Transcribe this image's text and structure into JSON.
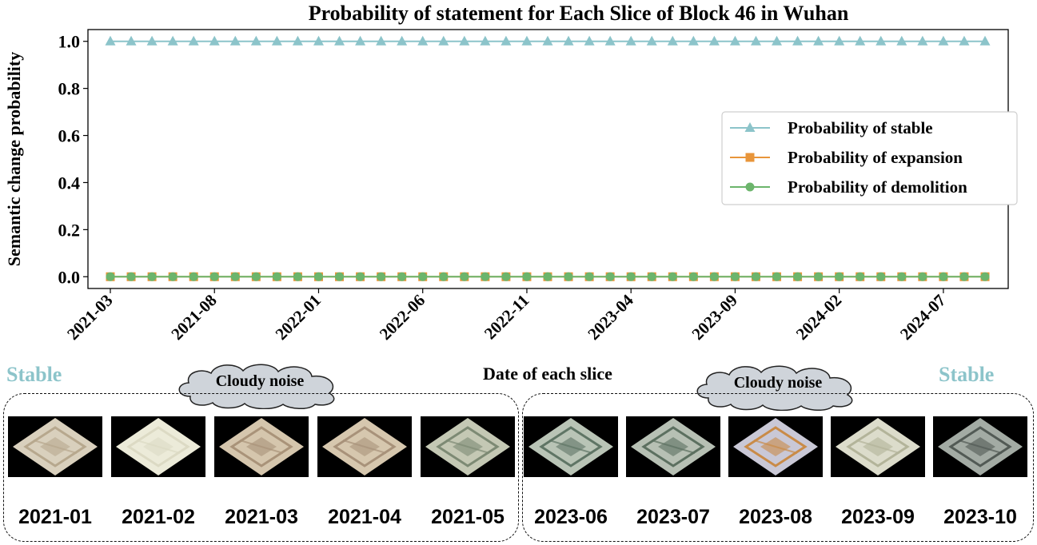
{
  "chart_data": {
    "type": "line",
    "title": "Probability of statement for Each Slice of Block 46 in Wuhan",
    "xlabel": "Date of each slice",
    "ylabel": "Semantic change probability",
    "ylim": [
      -0.05,
      1.05
    ],
    "yticks": [
      "0.0",
      "0.2",
      "0.4",
      "0.6",
      "0.8",
      "1.0"
    ],
    "xtick_labels": [
      "2021-03",
      "2021-08",
      "2022-01",
      "2022-06",
      "2022-11",
      "2023-04",
      "2023-09",
      "2024-02",
      "2024-07"
    ],
    "x": [
      "2021-03",
      "2021-04",
      "2021-05",
      "2021-06",
      "2021-07",
      "2021-08",
      "2021-09",
      "2021-10",
      "2021-11",
      "2021-12",
      "2022-01",
      "2022-02",
      "2022-03",
      "2022-04",
      "2022-05",
      "2022-06",
      "2022-07",
      "2022-08",
      "2022-09",
      "2022-10",
      "2022-11",
      "2022-12",
      "2023-01",
      "2023-02",
      "2023-03",
      "2023-04",
      "2023-05",
      "2023-06",
      "2023-07",
      "2023-08",
      "2023-09",
      "2023-10",
      "2023-11",
      "2023-12",
      "2024-01",
      "2024-02",
      "2024-03",
      "2024-04",
      "2024-05",
      "2024-06",
      "2024-07",
      "2024-08",
      "2024-09"
    ],
    "series": [
      {
        "name": "Probability of stable",
        "color": "#8cc4ca",
        "marker": "triangle",
        "value_all": 1.0
      },
      {
        "name": "Probability of expansion",
        "color": "#e8953a",
        "marker": "square",
        "value_all": 0.0
      },
      {
        "name": "Probability of demolition",
        "color": "#6cb56c",
        "marker": "circle",
        "value_all": 0.0
      }
    ],
    "legend_position": "right",
    "grid": false
  },
  "annotations": {
    "left_label": "Stable",
    "right_label": "Stable",
    "left_cloud": "Cloudy noise",
    "right_cloud": "Cloudy noise",
    "label_color": "#8cc4ca"
  },
  "thumbnails_left": [
    {
      "date": "2021-01",
      "tone": "#d9d0bd",
      "accent": "#b7a88e"
    },
    {
      "date": "2021-02",
      "tone": "#ecebd9",
      "accent": "#dcdac4"
    },
    {
      "date": "2021-03",
      "tone": "#d5c6ad",
      "accent": "#a99379"
    },
    {
      "date": "2021-04",
      "tone": "#d6c7ae",
      "accent": "#a8927a"
    },
    {
      "date": "2021-05",
      "tone": "#c4c8b4",
      "accent": "#7d8a74"
    }
  ],
  "thumbnails_right": [
    {
      "date": "2023-06",
      "tone": "#b9c4b6",
      "accent": "#5f7565"
    },
    {
      "date": "2023-07",
      "tone": "#b7c0b4",
      "accent": "#5c7060"
    },
    {
      "date": "2023-08",
      "tone": "#c9c8d6",
      "accent": "#c98b48"
    },
    {
      "date": "2023-09",
      "tone": "#dcdccb",
      "accent": "#b3b49a"
    },
    {
      "date": "2023-10",
      "tone": "#a3aba4",
      "accent": "#525a55"
    }
  ]
}
